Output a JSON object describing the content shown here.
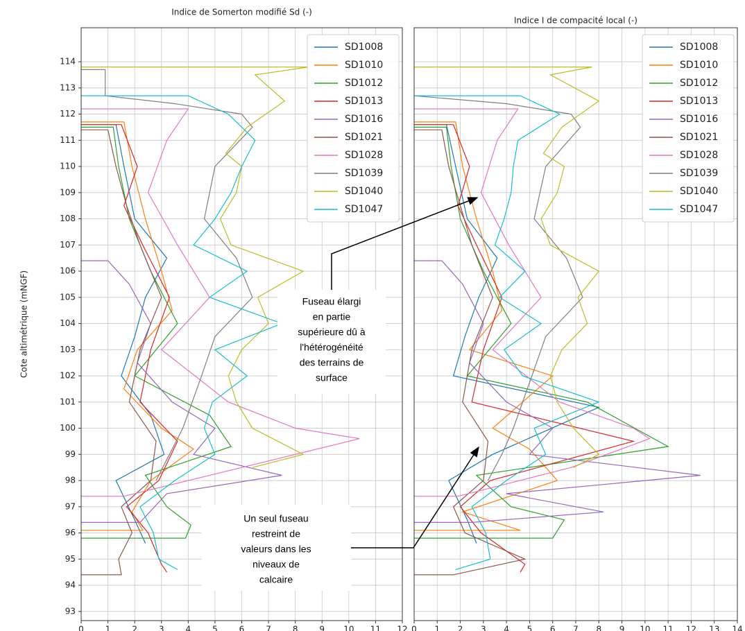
{
  "chart_data": [
    {
      "type": "line",
      "title": "Indice de Somerton modifié Sd (-)",
      "ylabel": "Cote altimétrique (mNGF)",
      "xlim": [
        0,
        12
      ],
      "xticks": [
        0,
        1,
        2,
        3,
        4,
        5,
        6,
        7,
        8,
        9,
        10,
        11,
        12
      ],
      "ylim": [
        92.65,
        115.3
      ],
      "yticks": [
        93,
        94,
        95,
        96,
        97,
        98,
        99,
        100,
        101,
        102,
        103,
        104,
        105,
        106,
        107,
        108,
        109,
        110,
        111,
        112,
        113,
        114
      ],
      "grid": true,
      "legend": "upper right",
      "series": [
        {
          "name": "SD1008",
          "color": "#1f77b4",
          "x": [
            0,
            1.3,
            1.6,
            2.0,
            3.2,
            2.4,
            2.0,
            1.5,
            2.6,
            3.1,
            1.3,
            2.0,
            2.4
          ],
          "values": [
            111.6,
            111.6,
            110,
            108,
            106.5,
            105,
            103.5,
            102,
            100.5,
            99,
            98,
            96.5,
            95.6
          ]
        },
        {
          "name": "SD1010",
          "color": "#ff7f0e",
          "x": [
            0,
            1.6,
            1.9,
            2.4,
            3.0,
            3.4,
            2.1,
            1.6,
            3.0,
            4.2,
            2.6,
            1.9,
            2.3,
            0
          ],
          "values": [
            111.7,
            111.7,
            110,
            108,
            106,
            104.5,
            103,
            101.5,
            100,
            99.2,
            98,
            96.8,
            96.1,
            96.1
          ]
        },
        {
          "name": "SD1012",
          "color": "#2ca02c",
          "x": [
            0,
            1.2,
            1.4,
            1.8,
            2.6,
            3.6,
            2.0,
            4.8,
            5.6,
            2.4,
            3.2,
            4.1,
            3.9,
            0
          ],
          "values": [
            111.5,
            111.5,
            110,
            108,
            106,
            104,
            102,
            100.5,
            99.3,
            98.2,
            97,
            96.3,
            95.8,
            95.8
          ]
        },
        {
          "name": "SD1013",
          "color": "#d62728",
          "x": [
            0,
            1.5,
            2.1,
            1.6,
            2.3,
            3.3,
            2.6,
            2.2,
            3.6,
            2.9,
            1.7,
            2.5,
            3.0,
            3.2
          ],
          "values": [
            111.6,
            111.6,
            110,
            108.5,
            107,
            105,
            103,
            101,
            99.5,
            98,
            97,
            96,
            94.8,
            94.5
          ]
        },
        {
          "name": "SD1016",
          "color": "#9467bd",
          "x": [
            0,
            1.0,
            1.8,
            2.6,
            2.1,
            3.4,
            5.0,
            4.2,
            7.5,
            3.2,
            2.2,
            0
          ],
          "values": [
            106.4,
            106.4,
            105.5,
            104,
            102.5,
            101,
            100,
            99,
            98.2,
            97.5,
            96.4,
            96.4
          ]
        },
        {
          "name": "SD1021",
          "color": "#8c564b",
          "x": [
            0,
            1.0,
            1.3,
            1.7,
            2.2,
            3.0,
            2.2,
            1.8,
            2.8,
            2.6,
            1.5,
            1.9,
            1.4,
            1.5,
            0
          ],
          "values": [
            111.4,
            111.4,
            110,
            108.5,
            107,
            105,
            103,
            101,
            99.5,
            98,
            97,
            96,
            95,
            94.4,
            94.4
          ]
        },
        {
          "name": "SD1028",
          "color": "#e377c2",
          "x": [
            0,
            4.0,
            3.2,
            2.5,
            3.6,
            4.8,
            3.0,
            5.5,
            8.0,
            10.4,
            6.0,
            1.6,
            0
          ],
          "values": [
            112.2,
            112.2,
            111,
            109,
            107,
            105,
            103,
            101,
            100,
            99.6,
            98.5,
            97.4,
            97.4
          ]
        },
        {
          "name": "SD1039",
          "color": "#7f7f7f",
          "x": [
            0,
            0.9,
            0.9,
            3.5,
            6.0,
            6.4,
            5.0,
            4.6,
            5.8,
            6.4,
            5.0,
            4.5,
            3.8,
            3.3,
            2.8
          ],
          "values": [
            113.7,
            113.7,
            112.7,
            112.4,
            112,
            111.5,
            110,
            108,
            106.5,
            105,
            103.5,
            102,
            100,
            99,
            98
          ]
        },
        {
          "name": "SD1040",
          "color": "#bcbd22",
          "x": [
            0,
            8.5,
            6.5,
            7.6,
            6.2,
            5.4,
            6.0,
            5.8,
            5.2,
            5.6,
            8.3,
            6.6,
            7.0,
            6.0,
            5.5,
            5.8,
            6.4,
            8.3,
            6.4
          ],
          "values": [
            113.8,
            113.8,
            113.5,
            112.5,
            111.5,
            110.5,
            110,
            109,
            108,
            107,
            106,
            105,
            104,
            103,
            102,
            101,
            100,
            99,
            98.5
          ]
        },
        {
          "name": "SD1047",
          "color": "#17becf",
          "x": [
            0,
            4.0,
            5.5,
            6.5,
            6.0,
            5.6,
            5.0,
            4.2,
            6.2,
            4.8,
            7.5,
            5.0,
            6.2,
            4.9,
            4.6,
            5.0,
            3.5,
            2.2,
            2.7,
            2.9,
            3.6
          ],
          "values": [
            112.7,
            112.7,
            112,
            111,
            110,
            109,
            108,
            107,
            106,
            105,
            104,
            103,
            102,
            101,
            100,
            99,
            98,
            97,
            96,
            95,
            94.6
          ]
        }
      ]
    },
    {
      "type": "line",
      "title": "Indice I de compacité local (-)",
      "xlim": [
        0,
        14
      ],
      "xticks": [
        0,
        1,
        2,
        3,
        4,
        5,
        6,
        7,
        8,
        9,
        10,
        11,
        12,
        13,
        14
      ],
      "ylim": [
        92.65,
        115.3
      ],
      "yticks": [
        93,
        94,
        95,
        96,
        97,
        98,
        99,
        100,
        101,
        102,
        103,
        104,
        105,
        106,
        107,
        108,
        109,
        110,
        111,
        112,
        113,
        114
      ],
      "grid": true,
      "legend": "upper right",
      "series": [
        {
          "name": "SD1008",
          "color": "#1f77b4",
          "x": [
            0,
            1.4,
            1.8,
            2.3,
            3.6,
            2.8,
            2.2,
            1.7,
            8.0,
            3.4,
            1.5,
            2.3,
            2.7
          ],
          "values": [
            111.6,
            111.6,
            110,
            108,
            106.5,
            105,
            103.5,
            102,
            100.8,
            99,
            98,
            96.5,
            95.6
          ]
        },
        {
          "name": "SD1010",
          "color": "#ff7f0e",
          "x": [
            0,
            1.8,
            2.1,
            2.7,
            3.4,
            3.8,
            2.4,
            6.0,
            3.4,
            5.0,
            6.2,
            2.1,
            4.6,
            0
          ],
          "values": [
            111.7,
            111.7,
            110,
            108,
            106,
            104.5,
            103,
            102,
            100,
            99.2,
            98,
            96.8,
            96.1,
            96.1
          ]
        },
        {
          "name": "SD1012",
          "color": "#2ca02c",
          "x": [
            0,
            1.4,
            1.6,
            2.0,
            3.0,
            4.2,
            2.3,
            7.5,
            11.0,
            2.7,
            4.2,
            6.5,
            6.0,
            0
          ],
          "values": [
            111.5,
            111.5,
            110,
            108,
            106,
            104,
            102,
            101,
            99.3,
            98.2,
            97,
            96.5,
            95.8,
            95.8
          ]
        },
        {
          "name": "SD1013",
          "color": "#d62728",
          "x": [
            0,
            1.7,
            2.4,
            1.9,
            2.7,
            3.8,
            3.0,
            2.5,
            9.5,
            3.3,
            2.0,
            2.9,
            4.8,
            4.6
          ],
          "values": [
            111.6,
            111.6,
            110,
            108.5,
            107,
            105,
            103,
            101,
            99.5,
            98,
            97,
            96,
            94.8,
            94.5
          ]
        },
        {
          "name": "SD1016",
          "color": "#9467bd",
          "x": [
            0,
            1.2,
            2.1,
            3.0,
            2.4,
            4.0,
            6.0,
            5.0,
            12.4,
            4.0,
            8.2,
            2.5,
            0
          ],
          "values": [
            106.4,
            106.4,
            105.5,
            104,
            102.5,
            101,
            100,
            99,
            98.2,
            97.5,
            96.8,
            96.4,
            96.4
          ]
        },
        {
          "name": "SD1021",
          "color": "#8c564b",
          "x": [
            0,
            1.2,
            1.5,
            2.0,
            2.5,
            3.4,
            2.5,
            2.1,
            3.2,
            3.0,
            1.7,
            2.2,
            4.8,
            1.7,
            0
          ],
          "values": [
            111.4,
            111.4,
            110,
            108.5,
            107,
            105,
            103,
            101,
            99.5,
            98,
            97,
            96,
            95,
            94.4,
            94.4
          ]
        },
        {
          "name": "SD1028",
          "color": "#e377c2",
          "x": [
            0,
            4.5,
            3.6,
            2.9,
            4.1,
            5.5,
            3.4,
            6.3,
            9.5,
            10.2,
            6.8,
            1.9,
            0
          ],
          "values": [
            112.2,
            112.2,
            111,
            109,
            107,
            105,
            103,
            101,
            100,
            99.6,
            98.5,
            97.4,
            97.4
          ]
        },
        {
          "name": "SD1039",
          "color": "#7f7f7f",
          "x": [
            0,
            4.0,
            6.8,
            7.2,
            5.7,
            5.2,
            6.6,
            7.3,
            5.7,
            5.1,
            4.3,
            3.8,
            3.2
          ],
          "values": [
            112.7,
            112.4,
            112,
            111.5,
            110,
            108,
            106.5,
            105,
            103.5,
            102,
            100,
            99,
            98
          ]
        },
        {
          "name": "SD1040",
          "color": "#bcbd22",
          "x": [
            0,
            7.7,
            5.9,
            8.0,
            6.4,
            5.6,
            6.5,
            6.2,
            5.5,
            5.9,
            8.0,
            7.1,
            7.5,
            6.4,
            5.9,
            6.2,
            6.9,
            8.0,
            6.9
          ],
          "values": [
            113.8,
            113.8,
            113.5,
            112.5,
            111.5,
            110.5,
            110,
            109,
            108,
            107,
            106,
            105,
            104,
            103,
            102,
            101,
            100,
            99,
            98.5
          ]
        },
        {
          "name": "SD1047",
          "color": "#17becf",
          "x": [
            0,
            4.6,
            6.3,
            4.5,
            4.3,
            4.2,
            3.9,
            3.5,
            4.8,
            3.7,
            5.5,
            3.9,
            4.7,
            8.0,
            5.2,
            5.7,
            4.0,
            2.5,
            3.1,
            3.3,
            1.8
          ],
          "values": [
            112.7,
            112.7,
            112,
            111,
            110,
            109,
            108,
            107,
            106,
            105,
            104,
            103,
            102,
            101,
            100,
            99,
            98,
            97,
            96,
            95,
            94.6
          ]
        }
      ]
    }
  ],
  "annotations": [
    {
      "lines": [
        "Fuseau élargi",
        "en partie",
        "supérieure dû à",
        "l'hétérogénéité",
        "des terrains de",
        "surface"
      ]
    },
    {
      "lines": [
        "Un seul fuseau",
        "restreint de",
        "valeurs dans les",
        "niveaux de",
        "calcaire"
      ]
    }
  ]
}
